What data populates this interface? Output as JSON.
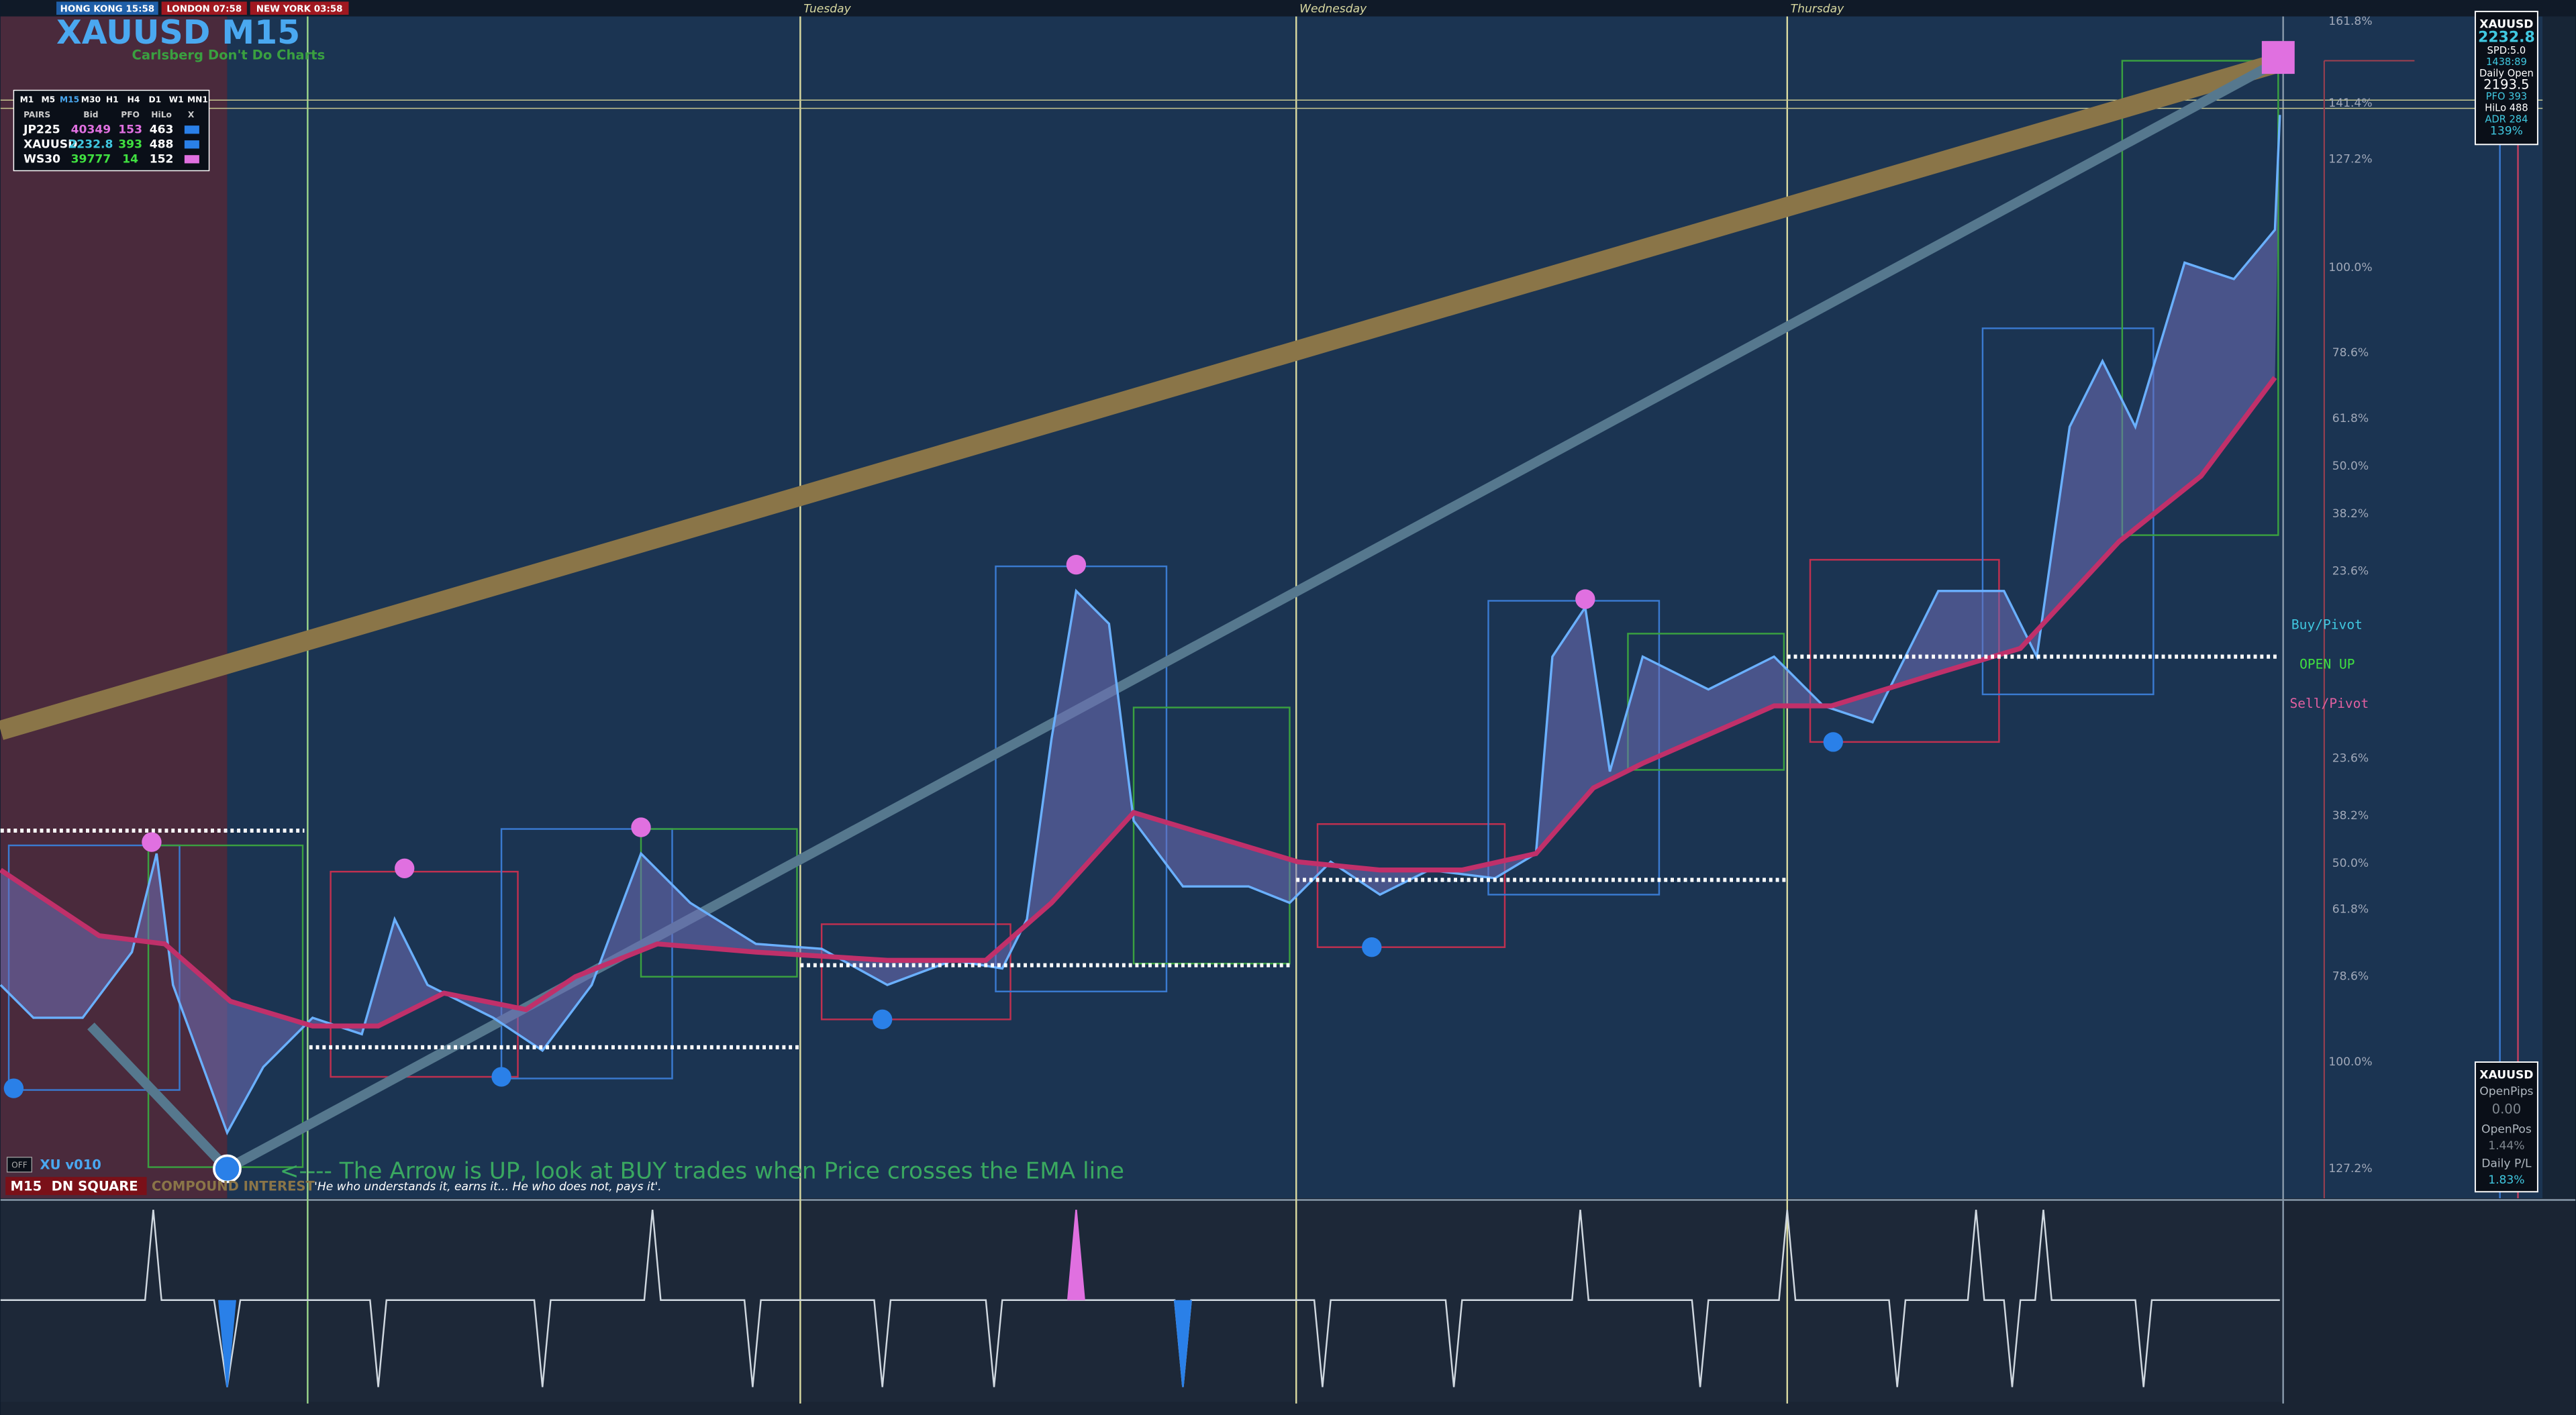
{
  "top_bar": {
    "sessions": [
      "HONG KONG 15:58",
      "LONDON 07:58",
      "NEW YORK 03:58"
    ]
  },
  "header": {
    "title": "XAUUSD M15",
    "subtitle": "Carlsberg Don't Do Charts"
  },
  "timeframes": [
    "M1",
    "M5",
    "M15",
    "M30",
    "H1",
    "H4",
    "D1",
    "W1",
    "MN1"
  ],
  "pairs_table": {
    "columns": [
      "PAIRS",
      "Bid",
      "PFO",
      "HiLo",
      "X"
    ],
    "rows": [
      [
        "JP225",
        40349,
        153,
        463
      ],
      [
        "XAUUSD",
        2232.8,
        393,
        488
      ],
      [
        "WS30",
        39777,
        14,
        152
      ]
    ]
  },
  "days": [
    "Tuesday",
    "Wednesday",
    "Thursday"
  ],
  "fib_levels": [
    "161.8%",
    "141.4%",
    "127.2%",
    "100.0%",
    "78.6%",
    "61.8%",
    "50.0%",
    "38.2%",
    "23.6%",
    "23.6%",
    "38.2%",
    "50.0%",
    "61.8%",
    "78.6%",
    "100.0%",
    "127.2%"
  ],
  "pivot_labels": [
    "Buy/Pivot",
    "OPEN UP",
    "Sell/Pivot"
  ],
  "info_panel": {
    "symbol": "XAUUSD",
    "price": "2232.8",
    "spread": "SPD:5.0",
    "timer": "1438:89",
    "daily_open_label": "Daily Open",
    "daily_open": "2193.5",
    "pfo": "PFO 393",
    "hilo": "HiLo 488",
    "adr": "ADR 284",
    "adr_pct": "139%"
  },
  "position_panel": {
    "symbol": "XAUUSD",
    "open_pips_label": "OpenPips",
    "open_pips": "0.00",
    "open_pos_label": "OpenPos",
    "open_pos": "1.44%",
    "daily_pl_label": "Daily P/L",
    "daily_pl": "1.83%"
  },
  "footer": {
    "toggle": "OFF",
    "version": "XU v010",
    "timeframe": "M15",
    "mode": "DN SQUARE",
    "tagline": "COMPOUND INTEREST",
    "quote": "'He who understands it, earns it... He who does not, pays it'."
  },
  "annotation": "<---- The Arrow is UP, look at BUY trades when Price crosses the EMA line"
}
